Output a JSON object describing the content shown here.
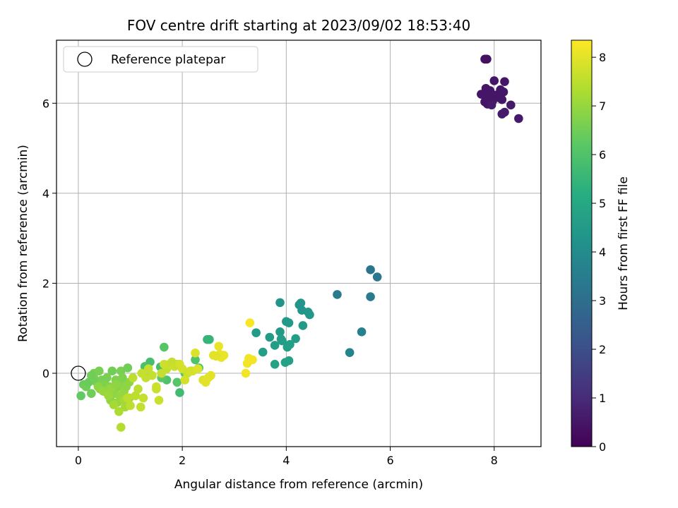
{
  "chart_data": {
    "type": "scatter",
    "title": "FOV centre drift starting at 2023/09/02 18:53:40",
    "xlabel": "Angular distance from reference (arcmin)",
    "ylabel": "Rotation from reference (arcmin)",
    "xlim": [
      -0.42,
      8.9
    ],
    "ylim": [
      -1.63,
      7.4
    ],
    "x_ticks": [
      0,
      2,
      4,
      6,
      8
    ],
    "y_ticks": [
      0,
      2,
      4,
      6
    ],
    "grid": true,
    "legend": {
      "placement": "top-left",
      "entries": [
        "Reference platepar"
      ]
    },
    "reference_point": {
      "x": 0,
      "y": 0
    },
    "colorbar": {
      "label": "Hours from first FF file",
      "colormap": "viridis",
      "range": [
        0,
        8.35
      ],
      "ticks": [
        0,
        1,
        2,
        3,
        4,
        5,
        6,
        7,
        8
      ]
    },
    "series": [
      {
        "x": [
          7.82,
          7.86,
          7.84,
          8.0,
          8.2,
          7.75,
          7.92,
          8.07,
          8.12,
          8.18,
          7.9,
          7.97,
          8.1,
          7.82,
          8.03,
          8.15,
          7.87,
          7.95,
          8.32,
          8.2,
          8.15,
          8.47,
          7.8,
          7.85
        ],
        "y": [
          6.98,
          6.98,
          6.33,
          6.5,
          6.48,
          6.2,
          6.28,
          6.15,
          6.3,
          6.25,
          6.1,
          6.05,
          6.12,
          6.03,
          6.18,
          6.08,
          5.98,
          5.96,
          5.96,
          5.8,
          5.76,
          5.66,
          6.2,
          6.3
        ],
        "hours": [
          0.35,
          0.35,
          0.5,
          0.5,
          0.5,
          0.5,
          0.5,
          0.5,
          0.5,
          0.5,
          0.5,
          0.5,
          0.5,
          0.5,
          0.5,
          0.5,
          0.5,
          0.6,
          0.6,
          0.6,
          0.6,
          0.6,
          0.5,
          0.5
        ]
      },
      {
        "x": [
          5.62,
          5.75,
          4.98,
          5.62,
          5.45,
          5.22
        ],
        "y": [
          2.3,
          2.14,
          1.75,
          1.7,
          0.92,
          0.46
        ],
        "hours": [
          3.2,
          3.3,
          3.4,
          3.45,
          3.6,
          3.7
        ]
      },
      {
        "x": [
          3.88,
          4.25,
          4.28,
          4.3,
          4.42,
          4.45,
          4.0,
          4.05,
          3.88,
          4.32,
          3.42,
          3.68,
          3.9,
          3.78,
          3.92,
          4.18,
          3.55,
          4.07,
          4.02,
          4.05,
          3.98,
          3.78
        ],
        "y": [
          1.57,
          1.52,
          1.56,
          1.4,
          1.36,
          1.3,
          1.15,
          1.12,
          0.92,
          1.06,
          0.9,
          0.8,
          0.76,
          0.62,
          0.72,
          0.77,
          0.47,
          0.64,
          0.58,
          0.28,
          0.24,
          0.2
        ],
        "hours": [
          4.3,
          4.3,
          4.35,
          4.35,
          4.4,
          4.4,
          4.45,
          4.45,
          4.5,
          4.5,
          4.55,
          4.55,
          4.6,
          4.6,
          4.6,
          4.6,
          4.65,
          4.65,
          4.65,
          4.7,
          4.75,
          4.75
        ]
      },
      {
        "x": [
          2.48,
          2.52,
          1.65,
          1.58,
          1.95,
          2.32,
          2.18,
          2.25,
          2.05,
          1.38,
          1.28,
          1.7,
          1.9,
          1.6
        ],
        "y": [
          0.75,
          0.75,
          0.58,
          0.14,
          -0.43,
          0.12,
          0.05,
          0.3,
          0.0,
          0.25,
          0.15,
          -0.15,
          -0.2,
          -0.1
        ],
        "hours": [
          5.5,
          5.5,
          6.1,
          5.8,
          5.7,
          5.9,
          5.6,
          6.0,
          6.2,
          5.8,
          5.9,
          6.0,
          6.1,
          6.2
        ]
      },
      {
        "x": [
          0.05,
          0.1,
          0.15,
          0.2,
          0.25,
          0.3,
          0.35,
          0.4,
          0.42,
          0.45,
          0.5,
          0.52,
          0.55,
          0.6,
          0.62,
          0.65,
          0.7,
          0.72,
          0.75,
          0.78,
          0.8,
          0.82,
          0.85,
          0.88,
          0.9,
          0.92,
          0.95,
          0.98,
          0.3,
          0.38,
          0.48,
          0.58,
          0.68,
          0.78,
          0.88,
          0.98,
          0.62,
          0.72,
          0.85,
          0.25
        ],
        "y": [
          -0.5,
          -0.25,
          -0.3,
          -0.2,
          -0.45,
          -0.1,
          -0.2,
          0.05,
          -0.35,
          -0.15,
          -0.4,
          -0.25,
          -0.1,
          -0.3,
          -0.6,
          0.05,
          -0.45,
          -0.15,
          -0.65,
          -0.3,
          -0.5,
          0.05,
          -0.2,
          -0.4,
          -0.75,
          -0.3,
          0.12,
          -0.55,
          0.0,
          -0.3,
          -0.4,
          -0.5,
          -0.7,
          -0.85,
          -0.6,
          -0.2,
          -0.35,
          -0.25,
          -0.1,
          -0.05
        ],
        "hours": [
          6.3,
          6.4,
          6.5,
          6.4,
          6.5,
          6.6,
          6.5,
          6.6,
          6.7,
          6.6,
          6.8,
          6.7,
          6.6,
          6.8,
          6.9,
          6.5,
          6.9,
          6.7,
          7.0,
          6.8,
          7.0,
          6.6,
          6.8,
          7.0,
          7.2,
          6.9,
          6.5,
          7.1,
          6.6,
          6.9,
          7.0,
          7.1,
          7.2,
          7.3,
          7.2,
          6.9,
          7.0,
          6.9,
          6.7,
          6.5
        ]
      },
      {
        "x": [
          0.82,
          1.0,
          1.1,
          1.2,
          1.15,
          1.3,
          1.5,
          1.55,
          1.6,
          1.7,
          1.75,
          1.8,
          1.85,
          1.9,
          2.0,
          2.1,
          2.15,
          2.2,
          2.25,
          2.3,
          1.42,
          1.5,
          1.22,
          1.05,
          1.35,
          1.65,
          1.95,
          2.05,
          0.95,
          1.25
        ],
        "y": [
          -1.2,
          -0.72,
          -0.5,
          -0.75,
          -0.35,
          -0.1,
          -0.35,
          -0.6,
          0.0,
          0.1,
          0.2,
          0.25,
          0.15,
          0.2,
          0.1,
          0.0,
          0.05,
          0.05,
          0.45,
          0.1,
          -0.05,
          -0.3,
          0.0,
          -0.1,
          0.1,
          0.2,
          0.2,
          -0.15,
          -0.55,
          -0.55
        ],
        "hours": [
          7.4,
          7.5,
          7.5,
          7.6,
          7.5,
          7.6,
          7.7,
          7.7,
          7.6,
          7.6,
          7.7,
          7.6,
          7.7,
          7.6,
          7.8,
          7.7,
          7.8,
          7.8,
          7.9,
          7.9,
          7.6,
          7.7,
          7.6,
          7.5,
          7.6,
          7.7,
          7.8,
          7.8,
          7.5,
          7.6
        ]
      },
      {
        "x": [
          2.4,
          2.45,
          2.5,
          2.55,
          2.6,
          2.7,
          2.75,
          2.8,
          2.72,
          2.65,
          3.3,
          3.35,
          3.25,
          3.22,
          3.28
        ],
        "y": [
          -0.15,
          -0.2,
          -0.1,
          -0.05,
          0.4,
          0.6,
          0.35,
          0.4,
          0.42,
          0.38,
          1.12,
          0.3,
          0.22,
          0.0,
          0.33
        ],
        "hours": [
          7.9,
          8.0,
          8.0,
          8.0,
          8.0,
          8.1,
          8.1,
          8.1,
          8.1,
          8.0,
          8.3,
          8.2,
          8.2,
          8.2,
          8.2
        ]
      }
    ]
  }
}
